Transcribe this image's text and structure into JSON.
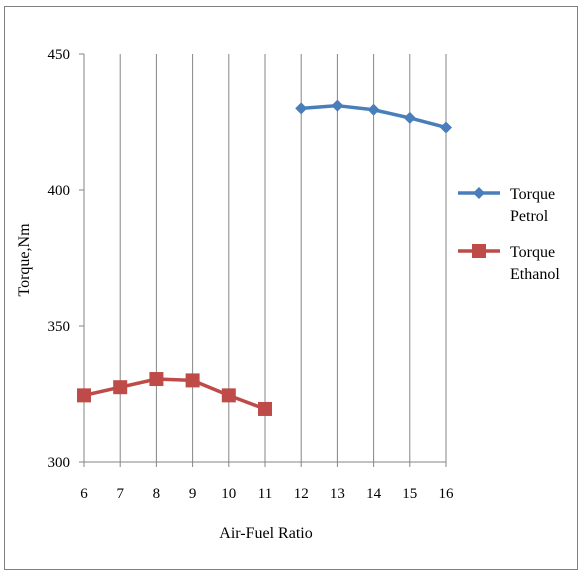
{
  "chart_data": {
    "type": "line",
    "xlabel": "Air-Fuel Ratio",
    "ylabel": "Torque,Nm",
    "x_categories": [
      6,
      7,
      8,
      9,
      10,
      11,
      12,
      13,
      14,
      15,
      16
    ],
    "ylim": [
      300,
      450
    ],
    "yticks": [
      300,
      350,
      400,
      450
    ],
    "grid": "vertical",
    "legend_position": "right",
    "series": [
      {
        "name": "Torque Petrol",
        "legend_lines": [
          "Torque",
          "Petrol"
        ],
        "color": "#4A7EBB",
        "marker": "diamond",
        "x": [
          12,
          13,
          14,
          15,
          16
        ],
        "y": [
          430,
          431,
          429.5,
          426.5,
          423
        ]
      },
      {
        "name": "Torque Ethanol",
        "legend_lines": [
          "Torque",
          "Ethanol"
        ],
        "color": "#BE4B48",
        "marker": "square",
        "x": [
          6,
          7,
          8,
          9,
          10,
          11
        ],
        "y": [
          324.5,
          327.5,
          330.5,
          330,
          324.5,
          319.5
        ]
      }
    ]
  }
}
